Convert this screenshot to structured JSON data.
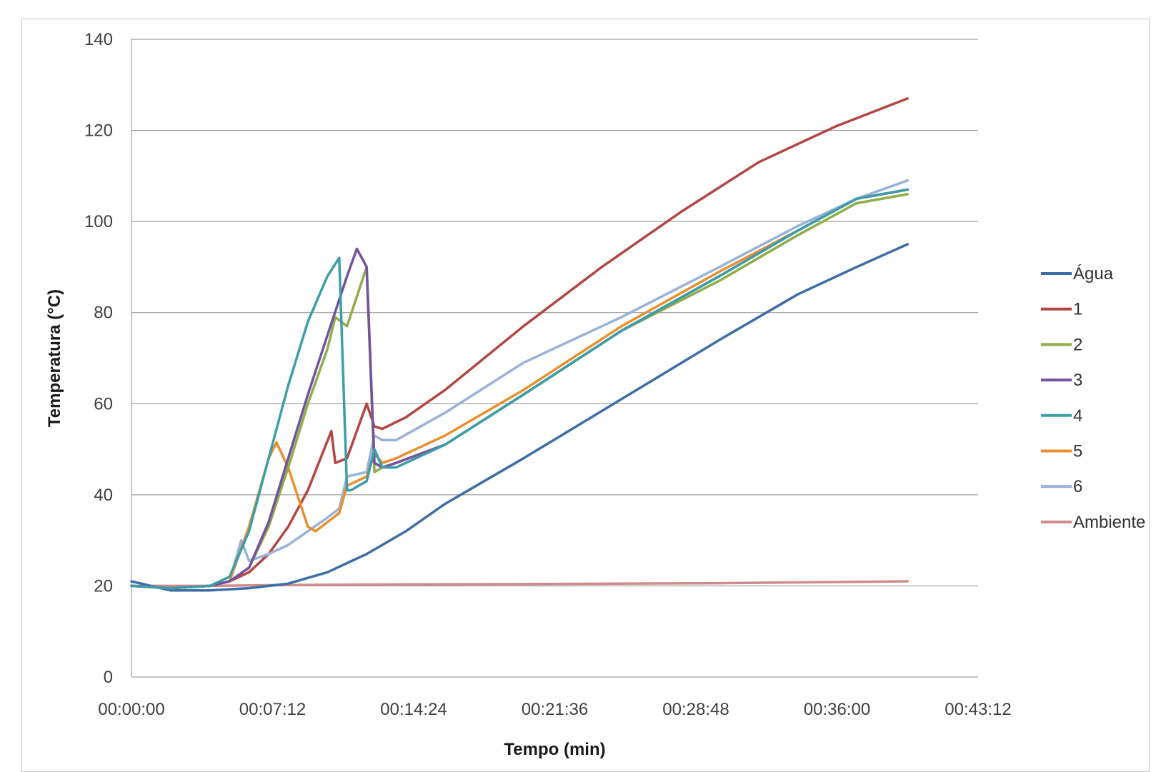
{
  "chart_data": {
    "type": "line",
    "title": "",
    "xlabel": "Tempo (min)",
    "ylabel": "Temperatura (°C)",
    "xlim": [
      "00:00:00",
      "00:43:12"
    ],
    "ylim": [
      0,
      140
    ],
    "x_ticks": [
      "00:00:00",
      "00:07:12",
      "00:14:24",
      "00:21:36",
      "00:28:48",
      "00:36:00",
      "00:43:12"
    ],
    "y_ticks": [
      "0",
      "20",
      "40",
      "60",
      "80",
      "100",
      "120",
      "140"
    ],
    "grid": "horizontal",
    "legend_position": "right",
    "series": [
      {
        "name": "Água",
        "color": "#3f6ea6",
        "x": [
          "00:00:00",
          "00:01:00",
          "00:02:00",
          "00:04:00",
          "00:06:00",
          "00:08:00",
          "00:10:00",
          "00:11:00",
          "00:12:00",
          "00:14:00",
          "00:16:00",
          "00:20:00",
          "00:25:00",
          "00:30:00",
          "00:34:00",
          "00:37:00",
          "00:39:36"
        ],
        "y": [
          21,
          20,
          19,
          19,
          19.5,
          20.5,
          23,
          25,
          27,
          32,
          38,
          48,
          61,
          74,
          84,
          90,
          95
        ]
      },
      {
        "name": "1",
        "color": "#b24642",
        "x": [
          "00:00:00",
          "00:02:00",
          "00:04:00",
          "00:05:00",
          "00:06:00",
          "00:07:00",
          "00:08:00",
          "00:09:00",
          "00:10:12",
          "00:10:24",
          "00:11:00",
          "00:12:00",
          "00:12:24",
          "00:12:48",
          "00:14:00",
          "00:16:00",
          "00:20:00",
          "00:24:00",
          "00:28:00",
          "00:32:00",
          "00:36:00",
          "00:39:36"
        ],
        "y": [
          20,
          19.5,
          20,
          21,
          23,
          27,
          33,
          41,
          54,
          47,
          48,
          60,
          55,
          54.5,
          57,
          63,
          77,
          90,
          102,
          113,
          121,
          127
        ]
      },
      {
        "name": "2",
        "color": "#8fad4a",
        "x": [
          "00:00:00",
          "00:02:00",
          "00:04:00",
          "00:05:00",
          "00:06:00",
          "00:07:00",
          "00:08:00",
          "00:09:00",
          "00:10:00",
          "00:10:24",
          "00:11:00",
          "00:12:00",
          "00:12:24",
          "00:12:48",
          "00:13:30",
          "00:16:00",
          "00:20:00",
          "00:25:00",
          "00:30:00",
          "00:34:00",
          "00:37:00",
          "00:39:36"
        ],
        "y": [
          20,
          19.5,
          20,
          21,
          24,
          33,
          46,
          60,
          72,
          79,
          77,
          90,
          45,
          46,
          47,
          51,
          62,
          76,
          87,
          97,
          104,
          106
        ]
      },
      {
        "name": "3",
        "color": "#7352a0",
        "x": [
          "00:00:00",
          "00:02:00",
          "00:04:00",
          "00:05:00",
          "00:06:00",
          "00:07:00",
          "00:08:00",
          "00:09:00",
          "00:10:00",
          "00:11:00",
          "00:11:30",
          "00:12:00",
          "00:12:24",
          "00:12:48",
          "00:13:30",
          "00:16:00",
          "00:20:00",
          "00:25:00",
          "00:30:00",
          "00:34:00",
          "00:37:00",
          "00:39:36"
        ],
        "y": [
          20,
          19.5,
          20,
          21,
          24,
          34,
          48,
          62,
          75,
          88,
          94,
          90,
          47,
          46,
          47,
          51,
          62,
          76,
          88,
          98,
          105,
          107
        ]
      },
      {
        "name": "4",
        "color": "#3d9ea8",
        "x": [
          "00:00:00",
          "00:02:00",
          "00:04:00",
          "00:05:00",
          "00:06:00",
          "00:07:00",
          "00:08:00",
          "00:09:00",
          "00:10:00",
          "00:10:36",
          "00:11:00",
          "00:11:12",
          "00:12:00",
          "00:12:24",
          "00:12:48",
          "00:13:30",
          "00:16:00",
          "00:20:00",
          "00:25:00",
          "00:30:00",
          "00:34:00",
          "00:37:00",
          "00:39:36"
        ],
        "y": [
          20,
          19.5,
          20,
          22,
          32,
          48,
          64,
          78,
          88,
          92,
          41,
          41,
          43,
          50,
          46,
          46,
          51,
          62,
          76,
          88,
          98,
          105,
          107
        ]
      },
      {
        "name": "5",
        "color": "#e8902e",
        "x": [
          "00:00:00",
          "00:02:00",
          "00:04:00",
          "00:05:00",
          "00:06:00",
          "00:07:00",
          "00:07:24",
          "00:08:00",
          "00:09:00",
          "00:09:24",
          "00:10:00",
          "00:10:36",
          "00:11:00",
          "00:12:00",
          "00:12:24",
          "00:12:48",
          "00:13:30",
          "00:16:00",
          "00:20:00",
          "00:25:00",
          "00:30:00",
          "00:34:00",
          "00:37:00",
          "00:39:36"
        ],
        "y": [
          20,
          19.5,
          20,
          21,
          33,
          48,
          51.5,
          46,
          33,
          32,
          34,
          36,
          42,
          44,
          49,
          47,
          48,
          53,
          63,
          77,
          89,
          98,
          105,
          107
        ]
      },
      {
        "name": "6",
        "color": "#99b2d8",
        "x": [
          "00:00:00",
          "00:02:00",
          "00:04:00",
          "00:05:00",
          "00:05:36",
          "00:06:00",
          "00:07:00",
          "00:08:00",
          "00:09:00",
          "00:10:00",
          "00:10:36",
          "00:11:00",
          "00:12:00",
          "00:12:24",
          "00:12:48",
          "00:13:30",
          "00:16:00",
          "00:20:00",
          "00:25:00",
          "00:30:00",
          "00:34:00",
          "00:37:00",
          "00:39:36"
        ],
        "y": [
          20,
          19.5,
          20,
          21,
          30,
          25.5,
          27,
          29,
          32,
          35,
          37,
          44,
          45,
          53,
          52,
          52,
          58,
          69,
          79,
          90,
          99,
          105,
          109
        ]
      },
      {
        "name": "Ambiente",
        "color": "#cf8b8d",
        "x": [
          "00:00:00",
          "00:04:00",
          "00:08:00",
          "00:12:00",
          "00:20:00",
          "00:30:00",
          "00:39:36"
        ],
        "y": [
          20,
          20,
          20.2,
          20.3,
          20.4,
          20.6,
          21
        ]
      }
    ]
  }
}
